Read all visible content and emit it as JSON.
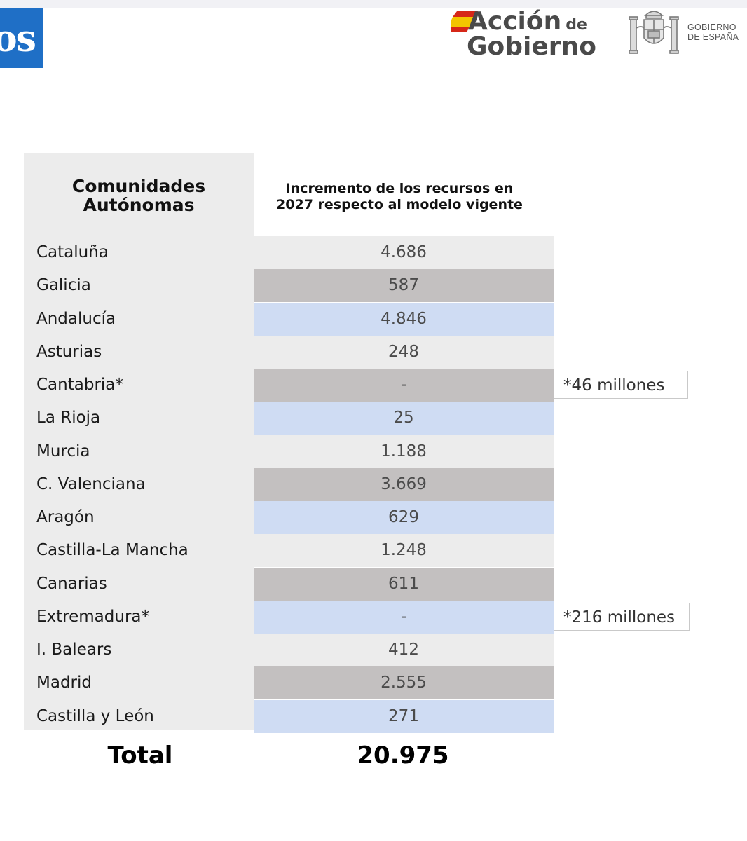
{
  "header": {
    "left_logo_text": "os",
    "accion_main": "Acción",
    "accion_de": "de",
    "accion_second": "Gobierno",
    "gobierno_line1": "GOBIERNO",
    "gobierno_line2": "DE ESPAÑA"
  },
  "table": {
    "header_col1": [
      "Comunidades",
      "Autónomas"
    ],
    "header_col2": [
      "Incremento de los recursos en",
      "2027 respecto al modelo vigente"
    ],
    "rows": [
      {
        "name": "Cataluña",
        "value": "4.686",
        "shade": "light"
      },
      {
        "name": "Galicia",
        "value": "587",
        "shade": "grey"
      },
      {
        "name": "Andalucía",
        "value": "4.846",
        "shade": "blue"
      },
      {
        "name": "Asturias",
        "value": "248",
        "shade": "light"
      },
      {
        "name": "Cantabria*",
        "value": "-",
        "shade": "grey",
        "note": "*46 millones"
      },
      {
        "name": "La Rioja",
        "value": "25",
        "shade": "blue"
      },
      {
        "name": "Murcia",
        "value": "1.188",
        "shade": "light"
      },
      {
        "name": "C. Valenciana",
        "value": "3.669",
        "shade": "grey"
      },
      {
        "name": "Aragón",
        "value": "629",
        "shade": "blue"
      },
      {
        "name": "Castilla-La Mancha",
        "value": "1.248",
        "shade": "light"
      },
      {
        "name": "Canarias",
        "value": "611",
        "shade": "grey"
      },
      {
        "name": "Extremadura*",
        "value": "-",
        "shade": "blue",
        "note": "*216 millones"
      },
      {
        "name": "I. Balears",
        "value": "412",
        "shade": "light"
      },
      {
        "name": "Madrid",
        "value": "2.555",
        "shade": "grey"
      },
      {
        "name": "Castilla y León",
        "value": "271",
        "shade": "blue"
      }
    ],
    "total_label": "Total",
    "total_value": "20.975"
  },
  "colors": {
    "light": "#ececec",
    "grey": "#c3c0c0",
    "blue": "#cfdcf3",
    "logo_blue": "#1f6fc6"
  }
}
